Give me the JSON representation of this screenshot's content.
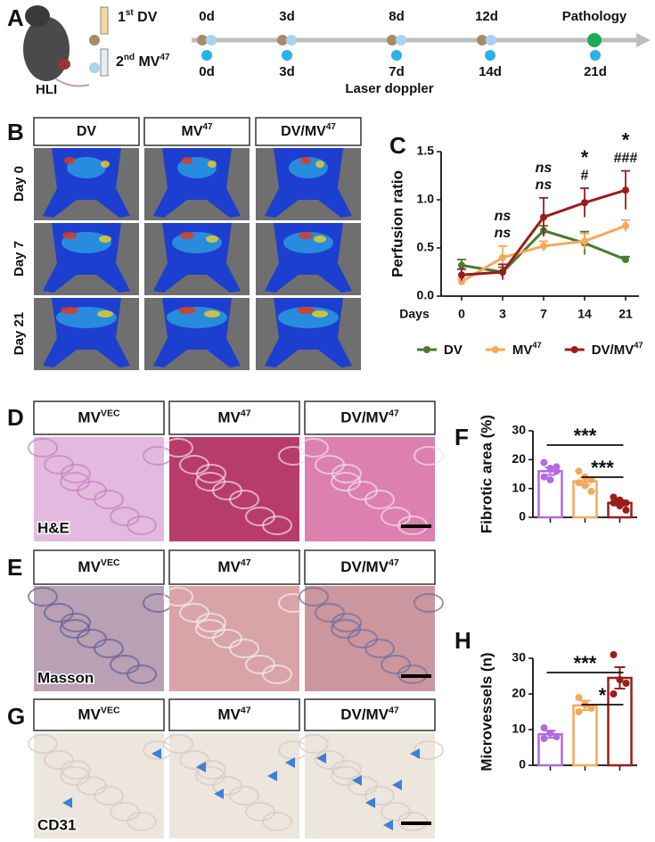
{
  "panel_a": {
    "letter": "A",
    "mouse_label": "HLI",
    "treatments": [
      [
        {
          "t": "1"
        },
        {
          "sup": "st"
        },
        {
          "t": " DV"
        }
      ],
      [
        {
          "t": "2"
        },
        {
          "sup": "nd"
        },
        {
          "t": " MV"
        },
        {
          "sup": "47"
        }
      ]
    ],
    "top_timepoints": [
      "0d",
      "3d",
      "8d",
      "12d",
      "Pathology"
    ],
    "bottom_timepoints": [
      "0d",
      "3d",
      "7d",
      "14d",
      "21d"
    ],
    "bottom_caption": "Laser doppler"
  },
  "panel_b": {
    "letter": "B",
    "groups": [
      "DV",
      [
        {
          "t": "MV"
        },
        {
          "sup": "47"
        }
      ],
      [
        {
          "t": "DV/MV"
        },
        {
          "sup": "47"
        }
      ]
    ],
    "days": [
      "Day 0",
      "Day 7",
      "Day 21"
    ]
  },
  "panel_d": {
    "letter": "D",
    "groups": [
      [
        {
          "t": "MV"
        },
        {
          "sup": "VEC"
        }
      ],
      [
        {
          "t": "MV"
        },
        {
          "sup": "47"
        }
      ],
      [
        {
          "t": "DV/MV"
        },
        {
          "sup": "47"
        }
      ]
    ],
    "stain": "H&E"
  },
  "panel_e": {
    "letter": "E",
    "groups": [
      [
        {
          "t": "MV"
        },
        {
          "sup": "VEC"
        }
      ],
      [
        {
          "t": "MV"
        },
        {
          "sup": "47"
        }
      ],
      [
        {
          "t": "DV/MV"
        },
        {
          "sup": "47"
        }
      ]
    ],
    "stain": "Masson"
  },
  "panel_g": {
    "letter": "G",
    "groups": [
      [
        {
          "t": "MV"
        },
        {
          "sup": "VEC"
        }
      ],
      [
        {
          "t": "MV"
        },
        {
          "sup": "47"
        }
      ],
      [
        {
          "t": "DV/MV"
        },
        {
          "sup": "47"
        }
      ]
    ],
    "stain": "CD31"
  },
  "chart_data": [
    {
      "type": "line",
      "panel_label": "C",
      "ylabel": "Perfusion ratio",
      "xlabel": "Days",
      "categories": [
        "0",
        "3",
        "7",
        "14",
        "21"
      ],
      "ylim": [
        0,
        1.5
      ],
      "yticks": [
        {
          "value": 0,
          "label": "0.0"
        },
        {
          "value": 0.5,
          "label": "0.5"
        },
        {
          "value": 1,
          "label": "1.0"
        },
        {
          "value": 1.5,
          "label": "1.5"
        }
      ],
      "series": [
        {
          "name": "DV",
          "color": "#4b7b2b",
          "values": [
            0.32,
            0.25,
            0.68,
            0.55,
            0.38
          ],
          "errors": [
            0.06,
            0.05,
            0.05,
            0.12,
            0.03
          ]
        },
        {
          "name": [
            {
              "t": "MV"
            },
            {
              "sup": "47"
            }
          ],
          "color": "#f5a95a",
          "values": [
            0.15,
            0.4,
            0.52,
            0.57,
            0.73
          ],
          "errors": [
            0.03,
            0.12,
            0.05,
            0.08,
            0.06
          ]
        },
        {
          "name": [
            {
              "t": "DV/MV"
            },
            {
              "sup": "47"
            }
          ],
          "color": "#9b1c1c",
          "values": [
            0.22,
            0.25,
            0.82,
            0.97,
            1.1
          ],
          "errors": [
            0.06,
            0.08,
            0.2,
            0.15,
            0.2
          ]
        }
      ],
      "annotations": [
        {
          "category": "3",
          "lines": [
            "ns",
            "ns"
          ]
        },
        {
          "category": "7",
          "lines": [
            "ns",
            "ns"
          ]
        },
        {
          "category": "14",
          "lines": [
            "#",
            "*"
          ]
        },
        {
          "category": "21",
          "lines": [
            "###",
            "*"
          ]
        }
      ]
    },
    {
      "type": "bar",
      "panel_label": "F",
      "ylabel": "Fibrotic area (%)",
      "categories": [
        null,
        null,
        null
      ],
      "values": [
        16,
        12.5,
        5
      ],
      "errors": [
        1.3,
        1.2,
        0.9
      ],
      "points": [
        [
          19,
          17,
          16,
          14,
          13,
          17.5
        ],
        [
          16,
          14,
          13,
          12,
          11,
          9
        ],
        [
          7,
          6,
          5,
          5,
          4,
          2.5
        ]
      ],
      "colors": [
        "#b36ae2",
        "#f5a95a",
        "#9b1c1c"
      ],
      "ylim": [
        0,
        30
      ],
      "yticks": [
        0,
        10,
        20,
        30
      ],
      "significance": [
        {
          "from": 0,
          "to": 2,
          "label": "***"
        },
        {
          "from": 1,
          "to": 2,
          "label": "***"
        }
      ]
    },
    {
      "type": "bar",
      "panel_label": "H",
      "ylabel": "Microvessels (n)",
      "categories": [
        null,
        null,
        null
      ],
      "values": [
        8.7,
        16.8,
        24.5
      ],
      "errors": [
        1.0,
        1.3,
        3.0
      ],
      "points": [
        [
          10.5,
          9,
          8,
          7.5
        ],
        [
          19,
          17,
          16,
          15
        ],
        [
          31,
          24,
          23,
          20
        ]
      ],
      "colors": [
        "#b36ae2",
        "#f5a95a",
        "#9b1c1c"
      ],
      "ylim": [
        0,
        30
      ],
      "yticks": [
        0,
        10,
        20,
        30
      ],
      "significance": [
        {
          "from": 0,
          "to": 2,
          "label": "***"
        },
        {
          "from": 1,
          "to": 2,
          "label": "*"
        }
      ]
    }
  ]
}
